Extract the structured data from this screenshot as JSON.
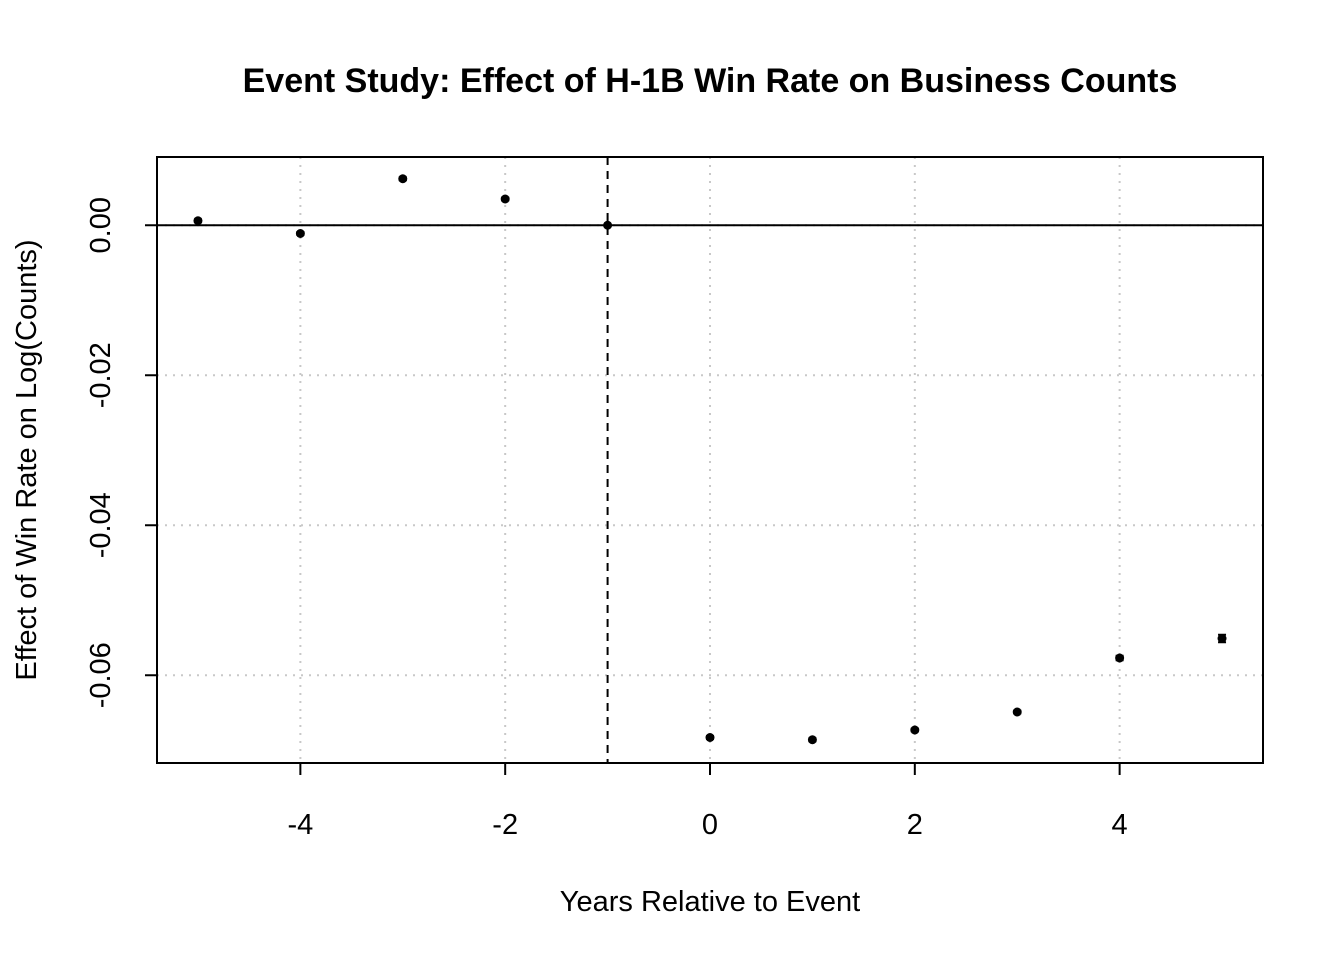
{
  "chart_data": {
    "type": "scatter",
    "title": "Event Study: Effect of H-1B Win Rate on Business Counts",
    "xlabel": "Years Relative to Event",
    "ylabel": "Effect of Win Rate on Log(Counts)",
    "xlim": [
      -5.4,
      5.4
    ],
    "ylim": [
      -0.0717,
      0.0091
    ],
    "x_ticks": [
      -4,
      -2,
      0,
      2,
      4
    ],
    "x_tick_labels": [
      "-4",
      "-2",
      "0",
      "2",
      "4"
    ],
    "y_ticks": [
      0.0,
      -0.02,
      -0.04,
      -0.06
    ],
    "y_tick_labels": [
      "0.00",
      "-0.02",
      "-0.04",
      "-0.06"
    ],
    "grid": true,
    "reference_lines": {
      "horizontal_solid_at_y": 0,
      "vertical_dashed_at_x": -1
    },
    "series": [
      {
        "x": [
          -5,
          -4,
          -3,
          -2,
          -1,
          0,
          1,
          2,
          3,
          4,
          5
        ],
        "y": [
          0.0006,
          -0.0011,
          0.0062,
          0.0035,
          0.0,
          -0.0683,
          -0.0686,
          -0.0673,
          -0.0649,
          -0.0577,
          -0.0551
        ],
        "ci_low": [
          0.0004,
          -0.0013,
          0.006,
          0.0033,
          0.0,
          -0.0685,
          -0.0688,
          -0.0675,
          -0.0651,
          -0.058,
          -0.0556
        ],
        "ci_high": [
          0.0008,
          -0.0009,
          0.0064,
          0.0037,
          0.0,
          -0.0681,
          -0.0684,
          -0.0671,
          -0.0647,
          -0.0574,
          -0.0546
        ]
      }
    ]
  }
}
